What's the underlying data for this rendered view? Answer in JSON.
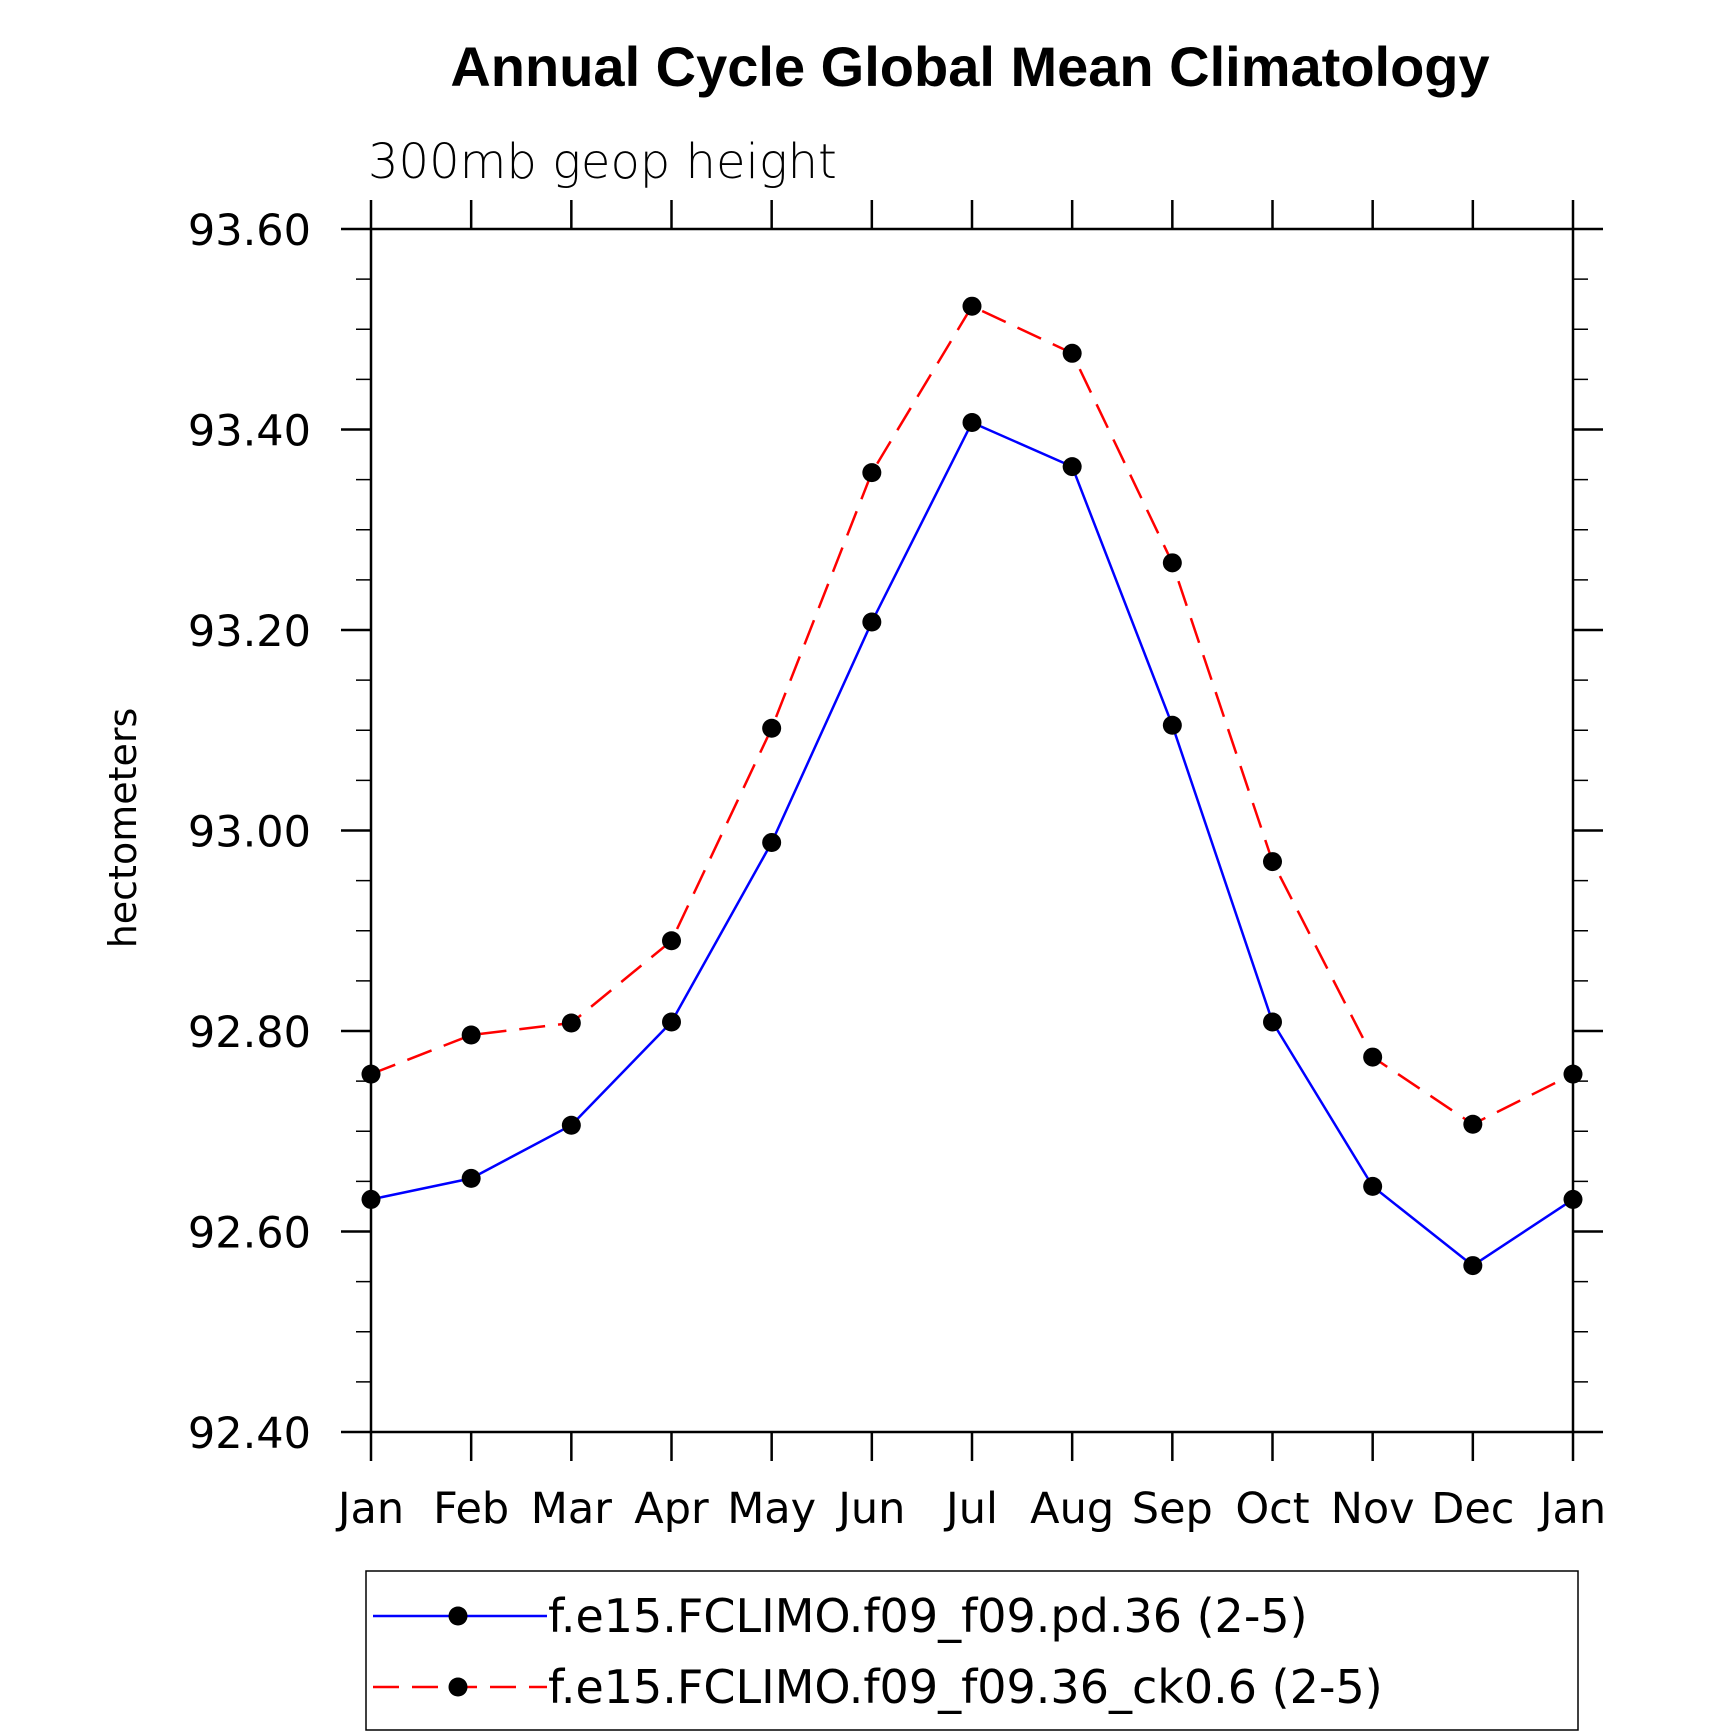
{
  "chart_data": {
    "type": "line",
    "title": "Annual Cycle Global Mean Climatology",
    "subtitle": "300mb geop height",
    "xlabel": "",
    "ylabel": "hectometers",
    "categories": [
      "Jan",
      "Feb",
      "Mar",
      "Apr",
      "May",
      "Jun",
      "Jul",
      "Aug",
      "Sep",
      "Oct",
      "Nov",
      "Dec",
      "Jan"
    ],
    "ylim": [
      92.4,
      93.6
    ],
    "yticks": [
      "93.60",
      "93.40",
      "93.20",
      "93.00",
      "92.80",
      "92.60",
      "92.40"
    ],
    "grid": false,
    "legend_position": "bottom",
    "series": [
      {
        "name": "f.e15.FCLIMO.f09_f09.pd.36 (2-5)",
        "color": "#0000ff",
        "line_style": "solid",
        "marker": "filled-circle",
        "values": [
          92.632,
          92.653,
          92.706,
          92.809,
          92.988,
          93.208,
          93.407,
          93.363,
          93.105,
          92.809,
          92.645,
          92.566,
          92.632
        ]
      },
      {
        "name": "f.e15.FCLIMO.f09_f09.36_ck0.6 (2-5)",
        "color": "#ff0000",
        "line_style": "dashed",
        "marker": "filled-circle",
        "values": [
          92.757,
          92.796,
          92.808,
          92.89,
          93.102,
          93.357,
          93.523,
          93.476,
          93.267,
          92.969,
          92.774,
          92.707,
          92.757
        ]
      }
    ]
  }
}
